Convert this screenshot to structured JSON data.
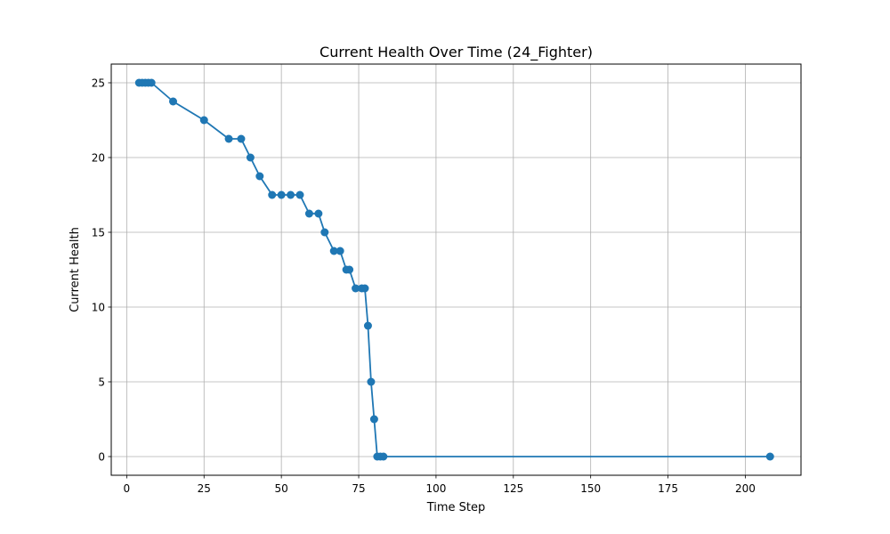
{
  "chart_data": {
    "type": "line",
    "title": "Current Health Over Time (24_Fighter)",
    "xlabel": "Time Step",
    "ylabel": "Current Health",
    "xlim": [
      -5,
      218
    ],
    "ylim": [
      -1.25,
      26.25
    ],
    "xticks": [
      0,
      25,
      50,
      75,
      100,
      125,
      150,
      175,
      200
    ],
    "yticks": [
      0,
      5,
      10,
      15,
      20,
      25
    ],
    "grid": true,
    "marker": "circle",
    "series": [
      {
        "color": "#1f77b4",
        "x": [
          4,
          5,
          6,
          7,
          8,
          15,
          25,
          33,
          37,
          40,
          43,
          47,
          50,
          53,
          56,
          59,
          62,
          64,
          67,
          69,
          71,
          72,
          74,
          76,
          77,
          78,
          79,
          80,
          81,
          82,
          83,
          208
        ],
        "y": [
          25,
          25,
          25,
          25,
          25,
          23.75,
          22.5,
          21.25,
          21.25,
          20,
          18.75,
          17.5,
          17.5,
          17.5,
          17.5,
          16.25,
          16.25,
          15,
          13.75,
          13.75,
          12.5,
          12.5,
          11.25,
          11.25,
          11.25,
          8.75,
          5,
          2.5,
          0,
          0,
          0,
          0
        ]
      }
    ]
  }
}
